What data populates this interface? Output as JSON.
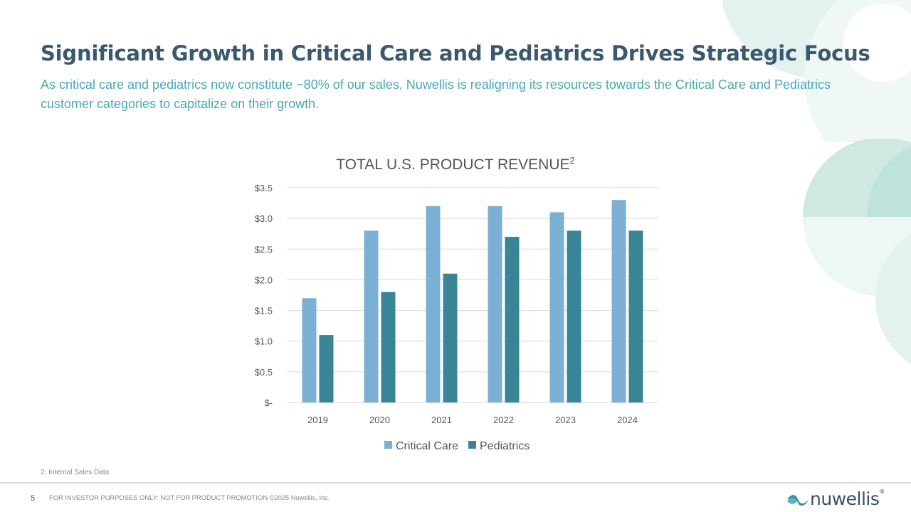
{
  "slide": {
    "title": "Significant Growth in Critical Care and Pediatrics Drives Strategic Focus",
    "subtitle": "As critical care and pediatrics now constitute ~80% of our sales, Nuwellis is realigning its resources towards the Critical Care and Pediatrics customer categories to capitalize on their growth.",
    "footnote": "2: Internal Sales Data",
    "page_number": "5",
    "disclaimer": "FOR INVESTOR PURPOSES ONLY: NOT FOR PRODUCT PROMOTION ©2025 Nuwellis, Inc.",
    "logo_text": "nuwellis",
    "logo_mark": "®"
  },
  "colors": {
    "title": "#3a5870",
    "subtitle": "#4aa6b7",
    "critical_care": "#7bafd4",
    "pediatrics": "#3a8595",
    "decor": "#c6e6e0"
  },
  "chart_data": {
    "type": "bar",
    "title": "TOTAL U.S. PRODUCT REVENUE",
    "title_superscript": "2",
    "categories": [
      "2019",
      "2020",
      "2021",
      "2022",
      "2023",
      "2024"
    ],
    "series": [
      {
        "name": "Critical Care",
        "values": [
          1.7,
          2.8,
          3.2,
          3.2,
          3.1,
          3.3
        ]
      },
      {
        "name": "Pediatrics",
        "values": [
          1.1,
          1.8,
          2.1,
          2.7,
          2.8,
          2.8
        ]
      }
    ],
    "ylim": [
      0,
      3.5
    ],
    "yticks": [
      {
        "value": 0,
        "label": "$-"
      },
      {
        "value": 0.5,
        "label": "$0.5"
      },
      {
        "value": 1.0,
        "label": "$1.0"
      },
      {
        "value": 1.5,
        "label": "$1.5"
      },
      {
        "value": 2.0,
        "label": "$2.0"
      },
      {
        "value": 2.5,
        "label": "$2.5"
      },
      {
        "value": 3.0,
        "label": "$3.0"
      },
      {
        "value": 3.5,
        "label": "$3.5"
      }
    ],
    "grid": true,
    "legend": "bottom"
  }
}
